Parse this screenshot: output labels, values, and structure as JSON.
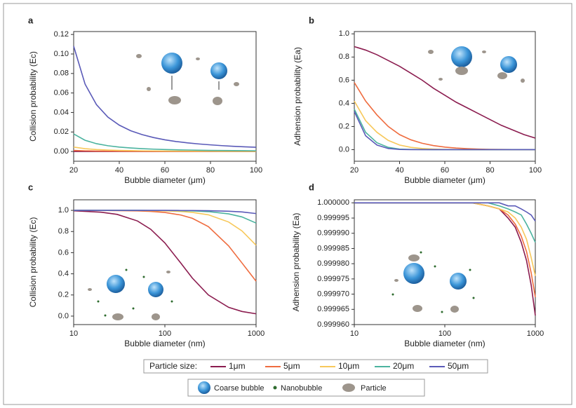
{
  "chart_data": [
    {
      "type": "line",
      "panel_label": "a",
      "x_label": "Bubble diameter (μm)",
      "y_label": "Collision probability (Ec)",
      "x": [
        20,
        25,
        30,
        35,
        40,
        45,
        50,
        55,
        60,
        65,
        70,
        75,
        80,
        85,
        90,
        95,
        100
      ],
      "xlim": [
        20,
        100
      ],
      "xticks": [
        20,
        40,
        60,
        80,
        100
      ],
      "ylim": [
        -0.01,
        0.123
      ],
      "yticks": [
        {
          "value": 0,
          "label": "0.00"
        },
        0.02,
        0.04,
        0.06,
        0.08,
        {
          "value": 0.1,
          "label": "0.10"
        },
        0.12
      ],
      "series": [
        {
          "name": "1μm",
          "color": "#8b1c4f",
          "values": [
            0,
            0,
            0,
            0,
            0,
            0,
            0,
            0,
            0,
            0,
            0,
            0,
            0,
            0,
            0,
            0,
            0
          ]
        },
        {
          "name": "5μm",
          "color": "#ef6c3f",
          "values": [
            0.0011,
            0.0007,
            0.0005,
            0.0004,
            0.0003,
            0.0002,
            0.0002,
            0.0001,
            0.0001,
            0.0001,
            0.0001,
            0.0001,
            0.0001,
            0.0001,
            0.0001,
            0,
            0
          ]
        },
        {
          "name": "10μm",
          "color": "#f7c85a",
          "values": [
            0.0045,
            0.0029,
            0.002,
            0.0015,
            0.0011,
            0.0009,
            0.0007,
            0.0006,
            0.0005,
            0.0004,
            0.0004,
            0.0003,
            0.0003,
            0.0002,
            0.0002,
            0.0002,
            0.0002
          ]
        },
        {
          "name": "20μm",
          "color": "#4bb39f",
          "values": [
            0.018,
            0.0115,
            0.008,
            0.0059,
            0.0045,
            0.0036,
            0.0029,
            0.0024,
            0.002,
            0.0017,
            0.0015,
            0.0013,
            0.0011,
            0.001,
            0.0009,
            0.0008,
            0.0007
          ]
        },
        {
          "name": "50μm",
          "color": "#5a5ab8",
          "values": [
            0.108,
            0.0691,
            0.048,
            0.0353,
            0.027,
            0.0213,
            0.0173,
            0.0143,
            0.012,
            0.0102,
            0.0088,
            0.0077,
            0.0068,
            0.006,
            0.0053,
            0.0048,
            0.0043
          ]
        }
      ]
    },
    {
      "type": "line",
      "panel_label": "b",
      "x_label": "Bubble diameter (μm)",
      "y_label": "Adhension probability (Ea)",
      "x": [
        20,
        25,
        30,
        35,
        40,
        45,
        50,
        55,
        60,
        65,
        70,
        75,
        80,
        85,
        90,
        95,
        100
      ],
      "xlim": [
        20,
        100
      ],
      "xticks": [
        20,
        40,
        60,
        80,
        100
      ],
      "ylim": [
        -0.1,
        1.02
      ],
      "yticks": [
        {
          "value": 0,
          "label": "0.0"
        },
        0.2,
        0.4,
        0.6,
        0.8,
        {
          "value": 1,
          "label": "1.0"
        }
      ],
      "series": [
        {
          "name": "1μm",
          "color": "#8b1c4f",
          "values": [
            0.89,
            0.86,
            0.82,
            0.77,
            0.72,
            0.66,
            0.6,
            0.53,
            0.47,
            0.41,
            0.36,
            0.31,
            0.26,
            0.21,
            0.17,
            0.13,
            0.1
          ]
        },
        {
          "name": "5μm",
          "color": "#ef6c3f",
          "values": [
            0.58,
            0.42,
            0.3,
            0.2,
            0.13,
            0.085,
            0.055,
            0.035,
            0.022,
            0.014,
            0.009,
            0.005,
            0.003,
            0.002,
            0.001,
            0.001,
            0
          ]
        },
        {
          "name": "10μm",
          "color": "#f7c85a",
          "values": [
            0.42,
            0.25,
            0.15,
            0.08,
            0.04,
            0.02,
            0.01,
            0.005,
            0.002,
            0.001,
            0,
            0,
            0,
            0,
            0,
            0,
            0
          ]
        },
        {
          "name": "20μm",
          "color": "#4bb39f",
          "values": [
            0.35,
            0.15,
            0.06,
            0.02,
            0.005,
            0.002,
            0.001,
            0,
            0,
            0,
            0,
            0,
            0,
            0,
            0,
            0,
            0
          ]
        },
        {
          "name": "50μm",
          "color": "#5a5ab8",
          "values": [
            0.33,
            0.12,
            0.04,
            0.01,
            0.002,
            0,
            0,
            0,
            0,
            0,
            0,
            0,
            0,
            0,
            0,
            0,
            0
          ]
        }
      ]
    },
    {
      "type": "line",
      "panel_label": "c",
      "x_label": "Bubble diameter (nm)",
      "y_label": "Collision probability (Ec)",
      "xscale": "log",
      "x": [
        10,
        20,
        30,
        50,
        70,
        100,
        150,
        200,
        300,
        500,
        700,
        1000
      ],
      "xlim": [
        10,
        1000
      ],
      "xticks": [
        10,
        100,
        1000
      ],
      "ylim": [
        -0.08,
        1.1
      ],
      "yticks": [
        {
          "value": 0,
          "label": "0.0"
        },
        0.2,
        0.4,
        0.6,
        0.8,
        {
          "value": 1,
          "label": "1.0"
        }
      ],
      "series": [
        {
          "name": "1μm",
          "color": "#8b1c4f",
          "values": [
            0.996,
            0.983,
            0.962,
            0.9,
            0.821,
            0.692,
            0.5,
            0.36,
            0.2,
            0.083,
            0.044,
            0.022
          ]
        },
        {
          "name": "5μm",
          "color": "#ef6c3f",
          "values": [
            1,
            0.999,
            0.998,
            0.995,
            0.99,
            0.98,
            0.956,
            0.925,
            0.846,
            0.664,
            0.503,
            0.33
          ]
        },
        {
          "name": "10μm",
          "color": "#f7c85a",
          "values": [
            1,
            1,
            1,
            0.999,
            0.998,
            0.995,
            0.989,
            0.981,
            0.958,
            0.89,
            0.806,
            0.67
          ]
        },
        {
          "name": "20μm",
          "color": "#4bb39f",
          "values": [
            1,
            1,
            1,
            1,
            0.999,
            0.999,
            0.997,
            0.995,
            0.988,
            0.967,
            0.938,
            0.88
          ]
        },
        {
          "name": "50μm",
          "color": "#5a5ab8",
          "values": [
            1,
            1,
            1,
            1,
            1,
            1,
            0.999,
            0.999,
            0.997,
            0.992,
            0.985,
            0.97
          ]
        }
      ]
    },
    {
      "type": "line",
      "panel_label": "d",
      "x_label": "Bubble diameter (nm)",
      "y_label": "Adhension probability (Ea)",
      "xscale": "log",
      "x": [
        10,
        30,
        100,
        200,
        300,
        400,
        500,
        600,
        700,
        800,
        900,
        1000
      ],
      "xlim": [
        10,
        1000
      ],
      "xticks": [
        10,
        100,
        1000
      ],
      "ylim": [
        0.99996,
        1.000001
      ],
      "yticks": [
        {
          "value": 0.99996,
          "label": "0.999960"
        },
        {
          "value": 0.999965,
          "label": "0.999965"
        },
        {
          "value": 0.99997,
          "label": "0.999970"
        },
        {
          "value": 0.999975,
          "label": "0.999975"
        },
        {
          "value": 0.99998,
          "label": "0.999980"
        },
        {
          "value": 0.999985,
          "label": "0.999985"
        },
        {
          "value": 0.99999,
          "label": "0.999990"
        },
        {
          "value": 0.999995,
          "label": "0.999995"
        },
        {
          "value": 1,
          "label": "1.000000"
        }
      ],
      "series": [
        {
          "name": "1μm",
          "color": "#8b1c4f",
          "values": [
            1,
            1,
            1,
            1,
            0.999999,
            0.999998,
            0.999995,
            0.999992,
            0.999987,
            0.999981,
            0.999973,
            0.999963
          ]
        },
        {
          "name": "5μm",
          "color": "#ef6c3f",
          "values": [
            1,
            1,
            1,
            1,
            0.999999,
            0.999998,
            0.999996,
            0.999993,
            0.999989,
            0.999984,
            0.999977,
            0.999969
          ]
        },
        {
          "name": "10μm",
          "color": "#f7c85a",
          "values": [
            1,
            1,
            1,
            1,
            0.999999,
            0.999998,
            0.999997,
            0.999995,
            0.999992,
            0.999988,
            0.999982,
            0.999976
          ]
        },
        {
          "name": "20μm",
          "color": "#4bb39f",
          "values": [
            1,
            1,
            1,
            1,
            1,
            0.999999,
            0.999998,
            0.999997,
            0.999996,
            0.999993,
            0.99999,
            0.999987
          ]
        },
        {
          "name": "50μm",
          "color": "#5a5ab8",
          "values": [
            1,
            1,
            1,
            1,
            1,
            1,
            0.999999,
            0.999999,
            0.999998,
            0.999997,
            0.999996,
            0.999994
          ]
        }
      ]
    }
  ],
  "legend_title": "Particle size:",
  "key": [
    "Coarse bubble",
    "Nanobubble",
    "Particle"
  ]
}
